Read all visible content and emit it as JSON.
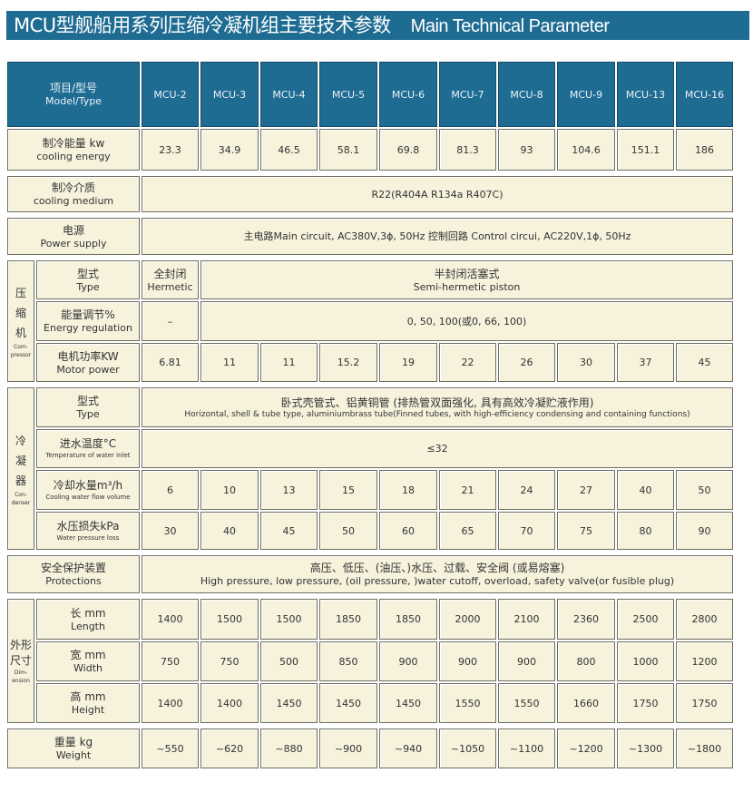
{
  "title": {
    "zh": "MCU型舰船用系列压缩冷凝机组主要技术参数",
    "en": "Main Technical Parameter"
  },
  "colors": {
    "header_bg": "#1f6c93",
    "cell_bg": "#f6f2dc",
    "border": "#6d6d62"
  },
  "header": {
    "label_zh": "项目/型号",
    "label_en": "Model/Type",
    "models": [
      "MCU-2",
      "MCU-3",
      "MCU-4",
      "MCU-5",
      "MCU-6",
      "MCU-7",
      "MCU-8",
      "MCU-9",
      "MCU-13",
      "MCU-16"
    ]
  },
  "rows": [
    {
      "key": "cooling-energy",
      "zh": "制冷能量 kw",
      "en": "cooling energy",
      "values": [
        "23.3",
        "34.9",
        "46.5",
        "58.1",
        "69.8",
        "81.3",
        "93",
        "104.6",
        "151.1",
        "186"
      ]
    },
    {
      "key": "cooling-medium",
      "zh": "制冷介质",
      "en": "cooling medium",
      "span_value": "R22(R404A R134a R407C)"
    },
    {
      "key": "power-supply",
      "zh": "电源",
      "en": "Power supply",
      "span_value": "主电路Main circuit, AC380V,3ϕ, 50Hz        控制回路 Control circui, AC220V,1ϕ, 50Hz"
    },
    {
      "key": "compressor-type",
      "group": "compressor",
      "zh": "型式",
      "en": "Type",
      "first_value_zh": "全封闭",
      "first_value_en": "Hermetic",
      "rest_value_zh": "半封闭活塞式",
      "rest_value_en": "Semi-hermetic piston"
    },
    {
      "key": "energy-regulation",
      "group": "compressor",
      "zh": "能量调节%",
      "en": "Energy regulation",
      "first_value": "–",
      "rest_value": "0, 50, 100(或0, 66, 100)"
    },
    {
      "key": "motor-power",
      "group": "compressor",
      "zh": "电机功率KW",
      "en": "Motor power",
      "values": [
        "6.81",
        "11",
        "11",
        "15.2",
        "19",
        "22",
        "26",
        "30",
        "37",
        "45"
      ]
    },
    {
      "key": "condenser-type",
      "group": "condenser",
      "zh": "型式",
      "en": "Type",
      "span_value_zh": "卧式壳管式、铝黄铜管 (排热管双面强化, 具有高效冷凝贮液作用)",
      "span_value_en": "Horizontal, shell & tube type, aluminiumbrass tube(Finned tubes, with high-efficiency condensing and containing functions)"
    },
    {
      "key": "water-inlet-temp",
      "group": "condenser",
      "zh": "进水温度°C",
      "en": "Temperature of water inlet",
      "span_value": "≤32"
    },
    {
      "key": "cooling-water-flow",
      "group": "condenser",
      "zh": "冷却水量m³/h",
      "en": "Cooling water flow volume",
      "values": [
        "6",
        "10",
        "13",
        "15",
        "18",
        "21",
        "24",
        "27",
        "40",
        "50"
      ]
    },
    {
      "key": "water-pressure-loss",
      "group": "condenser",
      "zh": "水压损失kPa",
      "en": "Water pressure loss",
      "values": [
        "30",
        "40",
        "45",
        "50",
        "60",
        "65",
        "70",
        "75",
        "80",
        "90"
      ]
    },
    {
      "key": "protections",
      "zh": "安全保护装置",
      "en": "Protections",
      "span_value_zh": "高压、低压、(油压、)水压、过载、安全阀 (或易熔塞)",
      "span_value_en": "High pressure, low pressure, (oil pressure, )water cutoff, overload, safety valve(or fusible plug)"
    },
    {
      "key": "length",
      "group": "dimension",
      "zh": "长 mm",
      "en": "Length",
      "values": [
        "1400",
        "1500",
        "1500",
        "1850",
        "1850",
        "2000",
        "2100",
        "2360",
        "2500",
        "2800"
      ]
    },
    {
      "key": "width",
      "group": "dimension",
      "zh": "宽 mm",
      "en": "Width",
      "values": [
        "750",
        "750",
        "500",
        "850",
        "900",
        "900",
        "900",
        "800",
        "1000",
        "1200"
      ]
    },
    {
      "key": "height",
      "group": "dimension",
      "zh": "高 mm",
      "en": "Height",
      "values": [
        "1400",
        "1400",
        "1450",
        "1450",
        "1450",
        "1550",
        "1550",
        "1660",
        "1750",
        "1750"
      ]
    },
    {
      "key": "weight",
      "zh": "重量 kg",
      "en": "Weight",
      "values": [
        "~550",
        "~620",
        "~880",
        "~900",
        "~940",
        "~1050",
        "~1100",
        "~1200",
        "~1300",
        "~1800"
      ]
    }
  ],
  "groups": {
    "compressor": {
      "zh": "压缩机",
      "en": "Com-pressor"
    },
    "condenser": {
      "zh": "冷凝器",
      "en": "Con-denser"
    },
    "dimension": {
      "zh": "外形尺寸",
      "en": "Dim-ension"
    }
  }
}
